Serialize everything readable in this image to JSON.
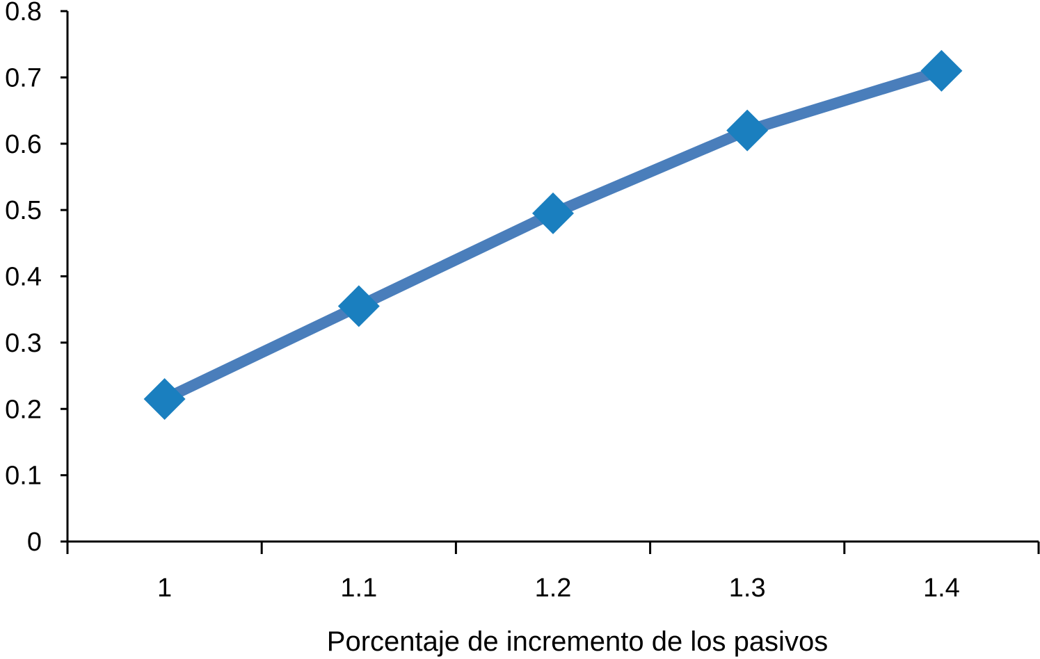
{
  "chart_data": {
    "type": "line",
    "title": "",
    "xlabel": "Porcentaje de incremento de los pasivos",
    "ylabel": "",
    "categories": [
      "1",
      "1.1",
      "1.2",
      "1.3",
      "1.4"
    ],
    "series": [
      {
        "values": [
          0.215,
          0.355,
          0.495,
          0.62,
          0.71
        ],
        "line_color": "#4a7ebb",
        "marker_color": "#1a7fbf",
        "marker": "diamond"
      }
    ],
    "ylim": [
      0,
      0.8
    ],
    "yticks": [
      0,
      0.1,
      0.2,
      0.3,
      0.4,
      0.5,
      0.6,
      0.7,
      0.8
    ],
    "ytick_labels": [
      "0",
      "0.1",
      "0.2",
      "0.3",
      "0.4",
      "0.5",
      "0.6",
      "0.7",
      "0.8"
    ],
    "grid": false,
    "legend": "none",
    "axis_color": "#000000"
  }
}
